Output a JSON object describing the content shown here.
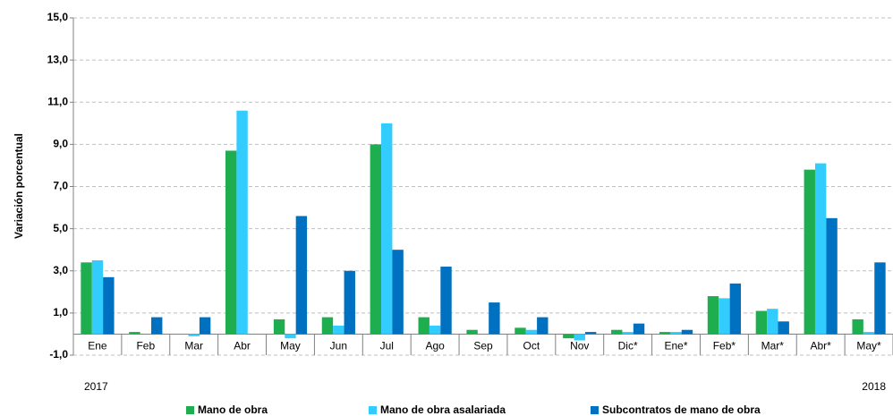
{
  "chart_data": {
    "type": "bar",
    "y_label": "Variación porcentual",
    "categories": [
      "Ene",
      "Feb",
      "Mar",
      "Abr",
      "May",
      "Jun",
      "Jul",
      "Ago",
      "Sep",
      "Oct",
      "Nov",
      "Dic*",
      "Ene*",
      "Feb*",
      "Mar*",
      "Abr*",
      "May*"
    ],
    "year_labels": [
      "2017",
      "2018"
    ],
    "series": [
      {
        "name": "Mano de obra",
        "color": "#1fae4f",
        "values": [
          3.4,
          0.1,
          0.0,
          8.7,
          0.7,
          0.8,
          9.0,
          0.8,
          0.2,
          0.3,
          -0.2,
          0.2,
          0.1,
          1.8,
          1.1,
          7.8,
          0.7
        ]
      },
      {
        "name": "Mano de obra asalariada",
        "color": "#33ccff",
        "values": [
          3.5,
          0.0,
          -0.1,
          10.6,
          -0.2,
          0.4,
          10.0,
          0.4,
          0.0,
          0.2,
          -0.3,
          0.1,
          0.1,
          1.7,
          1.2,
          8.1,
          0.1
        ]
      },
      {
        "name": "Subcontratos de mano de obra",
        "color": "#0070c0",
        "values": [
          2.7,
          0.8,
          0.8,
          0.0,
          5.6,
          3.0,
          4.0,
          3.2,
          1.5,
          0.8,
          0.1,
          0.5,
          0.2,
          2.4,
          0.6,
          5.5,
          3.4
        ]
      }
    ],
    "ylim": [
      -1,
      15
    ],
    "yticks": [
      {
        "value": -1,
        "label": "-1,0"
      },
      {
        "value": 1,
        "label": "1,0"
      },
      {
        "value": 3,
        "label": "3,0"
      },
      {
        "value": 5,
        "label": "5,0"
      },
      {
        "value": 7,
        "label": "7,0"
      },
      {
        "value": 9,
        "label": "9,0"
      },
      {
        "value": 11,
        "label": "11,0"
      },
      {
        "value": 13,
        "label": "13,0"
      },
      {
        "value": 15,
        "label": "15,0"
      }
    ],
    "grid": true,
    "legend": "bottom"
  }
}
